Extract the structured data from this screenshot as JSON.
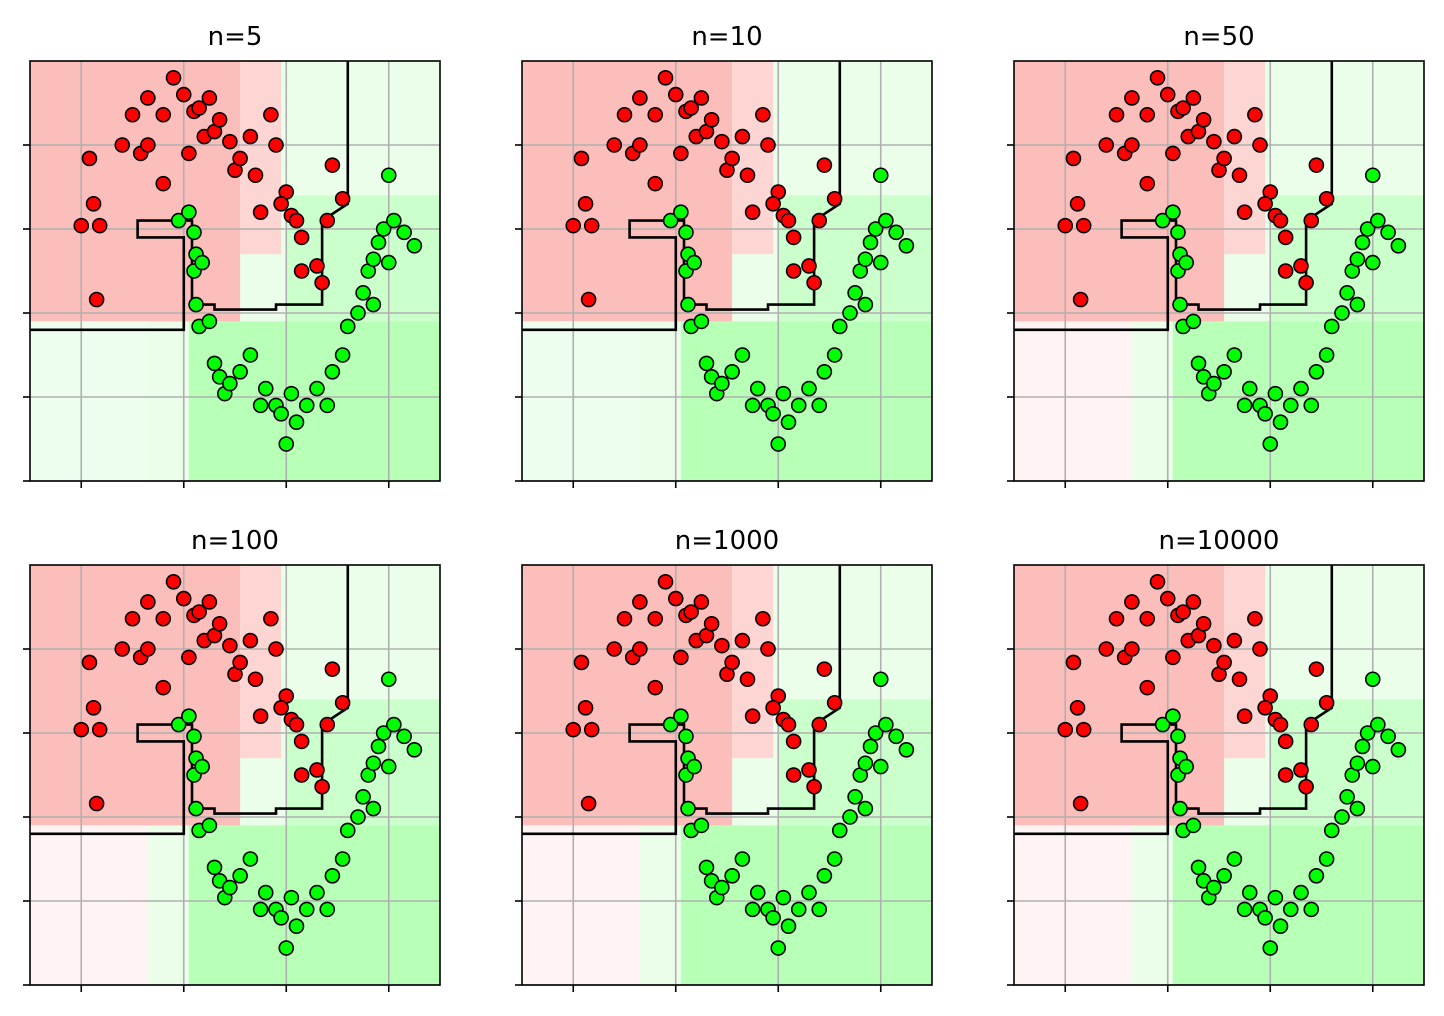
{
  "figure": {
    "layout": "2x3 grid",
    "colors": {
      "class_red": "#ff0000",
      "class_green": "#00ff00",
      "boundary": "#000000",
      "grid": "#b0b0b0",
      "region_red": "#ffb3b3",
      "region_green": "#b3ffb3"
    }
  },
  "chart_data": [
    {
      "type": "scatter",
      "title": "n=5",
      "xlabel": "",
      "ylabel": "",
      "xlim": [
        -1.5,
        2.5
      ],
      "ylim": [
        -1.0,
        1.5
      ],
      "grid": true
    },
    {
      "type": "scatter",
      "title": "n=10",
      "xlabel": "",
      "ylabel": "",
      "xlim": [
        -1.5,
        2.5
      ],
      "ylim": [
        -1.0,
        1.5
      ],
      "grid": true
    },
    {
      "type": "scatter",
      "title": "n=50",
      "xlabel": "",
      "ylabel": "",
      "xlim": [
        -1.5,
        2.5
      ],
      "ylim": [
        -1.0,
        1.5
      ],
      "grid": true
    },
    {
      "type": "scatter",
      "title": "n=100",
      "xlabel": "",
      "ylabel": "",
      "xlim": [
        -1.5,
        2.5
      ],
      "ylim": [
        -1.0,
        1.5
      ],
      "grid": true
    },
    {
      "type": "scatter",
      "title": "n=1000",
      "xlabel": "",
      "ylabel": "",
      "xlim": [
        -1.5,
        2.5
      ],
      "ylim": [
        -1.0,
        1.5
      ],
      "grid": true
    },
    {
      "type": "scatter",
      "title": "n=10000",
      "xlabel": "",
      "ylabel": "",
      "xlim": [
        -1.5,
        2.5
      ],
      "ylim": [
        -1.0,
        1.5
      ],
      "grid": true
    }
  ],
  "points": {
    "red": [
      [
        -1.0,
        0.52
      ],
      [
        -0.92,
        0.92
      ],
      [
        -0.88,
        0.65
      ],
      [
        -0.85,
        0.08
      ],
      [
        -0.82,
        0.52
      ],
      [
        -0.6,
        1.0
      ],
      [
        -0.5,
        1.18
      ],
      [
        -0.42,
        0.95
      ],
      [
        -0.35,
        1.0
      ],
      [
        -0.35,
        1.28
      ],
      [
        -0.2,
        1.18
      ],
      [
        -0.2,
        0.77
      ],
      [
        -0.1,
        1.4
      ],
      [
        0.0,
        1.3
      ],
      [
        0.05,
        0.95
      ],
      [
        0.1,
        1.2
      ],
      [
        0.15,
        1.22
      ],
      [
        0.2,
        1.05
      ],
      [
        0.25,
        1.28
      ],
      [
        0.3,
        1.08
      ],
      [
        0.35,
        1.15
      ],
      [
        0.45,
        1.02
      ],
      [
        0.5,
        0.85
      ],
      [
        0.55,
        0.92
      ],
      [
        0.65,
        1.05
      ],
      [
        0.7,
        0.82
      ],
      [
        0.85,
        1.18
      ],
      [
        0.9,
        1.0
      ],
      [
        1.0,
        0.72
      ],
      [
        1.05,
        0.58
      ],
      [
        1.1,
        0.55
      ],
      [
        1.15,
        0.45
      ],
      [
        1.15,
        0.25
      ],
      [
        1.3,
        0.28
      ],
      [
        1.35,
        0.18
      ],
      [
        1.4,
        0.55
      ],
      [
        1.45,
        0.88
      ],
      [
        1.55,
        0.68
      ],
      [
        0.95,
        0.65
      ],
      [
        0.75,
        0.6
      ]
    ],
    "green": [
      [
        -0.05,
        0.55
      ],
      [
        0.05,
        0.6
      ],
      [
        0.1,
        0.48
      ],
      [
        0.12,
        0.35
      ],
      [
        0.1,
        0.25
      ],
      [
        0.12,
        0.05
      ],
      [
        0.15,
        -0.08
      ],
      [
        0.18,
        0.3
      ],
      [
        0.25,
        -0.05
      ],
      [
        0.3,
        -0.3
      ],
      [
        0.35,
        -0.38
      ],
      [
        0.4,
        -0.48
      ],
      [
        0.45,
        -0.42
      ],
      [
        0.55,
        -0.35
      ],
      [
        0.65,
        -0.25
      ],
      [
        0.75,
        -0.55
      ],
      [
        0.8,
        -0.45
      ],
      [
        0.9,
        -0.55
      ],
      [
        0.95,
        -0.6
      ],
      [
        1.0,
        -0.78
      ],
      [
        1.05,
        -0.48
      ],
      [
        1.1,
        -0.65
      ],
      [
        1.2,
        -0.55
      ],
      [
        1.3,
        -0.45
      ],
      [
        1.4,
        -0.55
      ],
      [
        1.45,
        -0.35
      ],
      [
        1.55,
        -0.25
      ],
      [
        1.6,
        -0.08
      ],
      [
        1.7,
        0.0
      ],
      [
        1.75,
        0.12
      ],
      [
        1.8,
        0.25
      ],
      [
        1.85,
        0.32
      ],
      [
        1.9,
        0.42
      ],
      [
        1.95,
        0.5
      ],
      [
        2.05,
        0.55
      ],
      [
        2.15,
        0.48
      ],
      [
        2.25,
        0.4
      ],
      [
        2.0,
        0.3
      ],
      [
        1.85,
        0.05
      ],
      [
        2.0,
        0.82
      ]
    ]
  }
}
